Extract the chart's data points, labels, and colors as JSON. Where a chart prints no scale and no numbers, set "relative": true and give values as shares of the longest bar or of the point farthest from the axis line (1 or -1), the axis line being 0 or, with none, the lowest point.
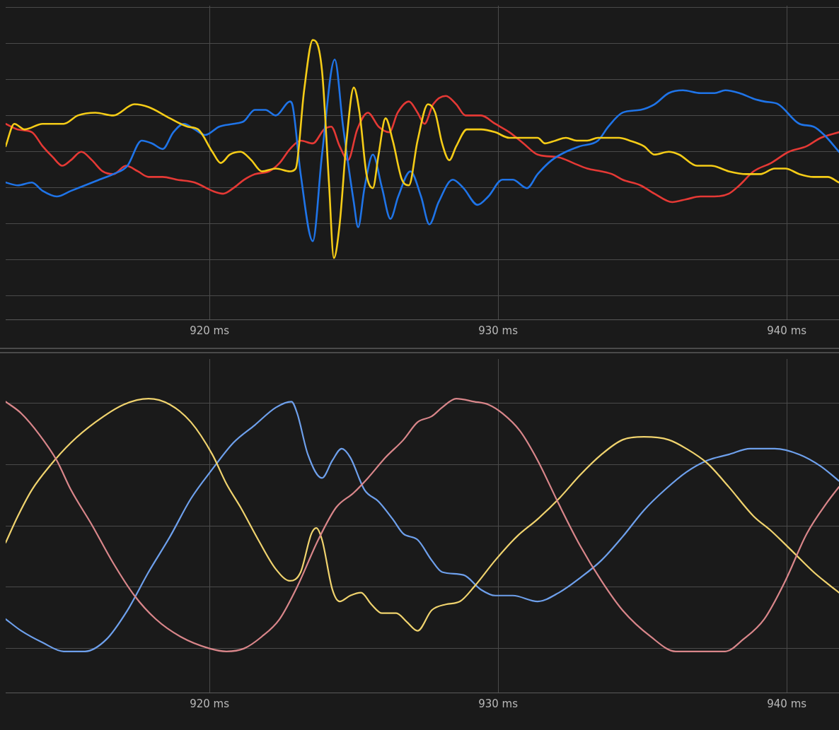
{
  "chart_data": [
    {
      "type": "line",
      "relative": true,
      "grid": true,
      "tick_labels": "x",
      "marker": "none",
      "line_style": "solid",
      "xlim": [
        912.94,
        941.81
      ],
      "xticks": [
        {
          "value": 920,
          "label": "920 ms"
        },
        {
          "value": 930,
          "label": "930 ms"
        },
        {
          "value": 940,
          "label": "940 ms"
        }
      ],
      "series": [
        {
          "color": "#f5cc17",
          "x": [
            912.94,
            913.24,
            913.6,
            914.22,
            914.95,
            915.44,
            916.05,
            916.67,
            917.4,
            917.89,
            918.63,
            919.24,
            919.61,
            920.1,
            920.39,
            920.71,
            921.08,
            921.45,
            921.81,
            922.3,
            922.79,
            922.99,
            923.28,
            923.58,
            923.9,
            924.14,
            924.31,
            924.51,
            924.75,
            925.0,
            925.2,
            925.44,
            925.66,
            925.86,
            926.1,
            926.35,
            926.67,
            926.91,
            927.21,
            927.57,
            927.82,
            928.06,
            928.31,
            928.55,
            928.92,
            929.41,
            929.9,
            930.39,
            930.88,
            931.37,
            931.62,
            931.99,
            932.35,
            932.72,
            933.09,
            933.46,
            934.19,
            934.56,
            935.05,
            935.42,
            935.91,
            936.27,
            936.89,
            937.38,
            937.99,
            938.6,
            939.09,
            939.58,
            939.95,
            940.44,
            940.93,
            941.42,
            941.81
          ],
          "values": [
            0.62,
            0.7,
            0.68,
            0.7,
            0.7,
            0.73,
            0.74,
            0.73,
            0.77,
            0.76,
            0.72,
            0.69,
            0.68,
            0.6,
            0.56,
            0.59,
            0.6,
            0.57,
            0.53,
            0.54,
            0.53,
            0.54,
            0.82,
            1,
            0.89,
            0.49,
            0.22,
            0.34,
            0.64,
            0.83,
            0.74,
            0.52,
            0.47,
            0.59,
            0.72,
            0.64,
            0.5,
            0.48,
            0.64,
            0.77,
            0.74,
            0.63,
            0.57,
            0.62,
            0.68,
            0.68,
            0.67,
            0.65,
            0.65,
            0.65,
            0.63,
            0.64,
            0.65,
            0.64,
            0.64,
            0.65,
            0.65,
            0.64,
            0.62,
            0.59,
            0.6,
            0.59,
            0.55,
            0.55,
            0.53,
            0.52,
            0.52,
            0.54,
            0.54,
            0.52,
            0.51,
            0.51,
            0.49
          ]
        },
        {
          "color": "#1f74e8",
          "x": [
            912.94,
            913.36,
            913.85,
            914.22,
            914.71,
            915.2,
            915.69,
            916.18,
            916.67,
            917.16,
            917.65,
            918.01,
            918.38,
            918.75,
            919.12,
            919.49,
            919.85,
            920.34,
            920.83,
            921.2,
            921.57,
            921.94,
            922.3,
            922.79,
            922.87,
            923.16,
            923.58,
            923.9,
            924.34,
            924.63,
            925.0,
            925.15,
            925.37,
            925.66,
            925.98,
            926.27,
            926.54,
            926.96,
            927.33,
            927.62,
            927.94,
            928.43,
            928.8,
            929.29,
            929.66,
            930.15,
            930.51,
            931.0,
            931.37,
            931.86,
            932.35,
            932.84,
            933.46,
            933.82,
            934.31,
            934.93,
            935.42,
            935.91,
            936.4,
            937.01,
            937.5,
            937.87,
            938.36,
            938.85,
            939.22,
            939.71,
            940.44,
            940.93,
            941.3,
            941.81
          ],
          "values": [
            0.49,
            0.48,
            0.49,
            0.46,
            0.44,
            0.46,
            0.48,
            0.5,
            0.52,
            0.55,
            0.64,
            0.63,
            0.61,
            0.67,
            0.7,
            0.68,
            0.66,
            0.69,
            0.7,
            0.71,
            0.75,
            0.75,
            0.73,
            0.78,
            0.77,
            0.52,
            0.28,
            0.59,
            0.93,
            0.69,
            0.42,
            0.33,
            0.47,
            0.59,
            0.47,
            0.36,
            0.44,
            0.53,
            0.44,
            0.34,
            0.42,
            0.5,
            0.47,
            0.41,
            0.44,
            0.5,
            0.5,
            0.47,
            0.52,
            0.57,
            0.6,
            0.62,
            0.64,
            0.69,
            0.74,
            0.75,
            0.77,
            0.81,
            0.82,
            0.81,
            0.81,
            0.82,
            0.81,
            0.79,
            0.78,
            0.77,
            0.7,
            0.69,
            0.66,
            0.6
          ]
        },
        {
          "color": "#e53935",
          "x": [
            912.94,
            913.36,
            913.85,
            914.22,
            914.58,
            914.9,
            915.2,
            915.56,
            915.93,
            916.3,
            916.67,
            917.11,
            917.52,
            917.89,
            918.38,
            918.87,
            919.49,
            920.1,
            920.47,
            920.83,
            921.2,
            921.57,
            922.06,
            922.43,
            922.79,
            923.16,
            923.58,
            923.97,
            924.22,
            924.51,
            924.8,
            925.12,
            925.49,
            925.86,
            926.23,
            926.52,
            926.91,
            927.21,
            927.45,
            927.75,
            928.19,
            928.55,
            928.87,
            929.41,
            929.9,
            930.39,
            930.88,
            931.37,
            932.11,
            932.6,
            933.09,
            933.58,
            933.95,
            934.31,
            934.93,
            935.42,
            936.03,
            936.52,
            937.01,
            937.5,
            937.99,
            938.36,
            938.85,
            939.46,
            940.07,
            940.69,
            941.18,
            941.81
          ],
          "values": [
            0.7,
            0.68,
            0.67,
            0.62,
            0.58,
            0.55,
            0.57,
            0.6,
            0.57,
            0.53,
            0.52,
            0.55,
            0.53,
            0.51,
            0.51,
            0.5,
            0.49,
            0.46,
            0.45,
            0.47,
            0.5,
            0.52,
            0.53,
            0.56,
            0.61,
            0.64,
            0.63,
            0.68,
            0.69,
            0.62,
            0.57,
            0.68,
            0.74,
            0.69,
            0.67,
            0.74,
            0.78,
            0.74,
            0.7,
            0.77,
            0.8,
            0.77,
            0.73,
            0.73,
            0.7,
            0.67,
            0.63,
            0.59,
            0.58,
            0.56,
            0.54,
            0.53,
            0.52,
            0.5,
            0.48,
            0.45,
            0.42,
            0.43,
            0.44,
            0.44,
            0.45,
            0.48,
            0.53,
            0.56,
            0.6,
            0.62,
            0.65,
            0.67
          ]
        }
      ]
    },
    {
      "type": "line",
      "relative": true,
      "grid": true,
      "tick_labels": "x",
      "marker": "none",
      "line_style": "solid",
      "xlim": [
        912.94,
        941.81
      ],
      "xticks": [
        {
          "value": 920,
          "label": "920 ms"
        },
        {
          "value": 930,
          "label": "930 ms"
        },
        {
          "value": 940,
          "label": "940 ms"
        }
      ],
      "series": [
        {
          "color": "#d9868a",
          "x": [
            912.94,
            913.48,
            914.09,
            914.71,
            915.2,
            915.93,
            916.67,
            917.4,
            918.14,
            919.0,
            920.0,
            920.59,
            921.2,
            921.81,
            922.43,
            923.04,
            923.77,
            924.39,
            925.0,
            925.49,
            926.1,
            926.72,
            927.21,
            927.7,
            928.06,
            928.55,
            929.17,
            929.66,
            930.15,
            930.76,
            931.37,
            932.11,
            932.84,
            933.58,
            934.31,
            935.29,
            936.15,
            937.01,
            937.87,
            938.48,
            939.22,
            939.95,
            940.69,
            941.42,
            941.81
          ],
          "values": [
            0.99,
            0.95,
            0.88,
            0.79,
            0.69,
            0.57,
            0.44,
            0.33,
            0.25,
            0.19,
            0.15,
            0.14,
            0.15,
            0.19,
            0.25,
            0.36,
            0.52,
            0.63,
            0.68,
            0.73,
            0.8,
            0.86,
            0.92,
            0.94,
            0.97,
            1,
            0.99,
            0.98,
            0.95,
            0.89,
            0.79,
            0.64,
            0.5,
            0.38,
            0.28,
            0.19,
            0.14,
            0.14,
            0.14,
            0.18,
            0.25,
            0.38,
            0.54,
            0.65,
            0.7
          ]
        },
        {
          "color": "#f0d36e",
          "x": [
            912.94,
            913.36,
            913.85,
            914.46,
            915.2,
            916.05,
            917.03,
            917.89,
            918.63,
            919.36,
            920.1,
            920.59,
            921.08,
            921.69,
            922.3,
            922.79,
            923.16,
            923.53,
            923.7,
            923.9,
            924.26,
            924.51,
            924.88,
            925.25,
            925.61,
            925.98,
            926.47,
            926.84,
            927.21,
            927.7,
            928.19,
            928.68,
            929.17,
            929.9,
            930.64,
            931.37,
            932.11,
            932.84,
            933.58,
            934.31,
            935.05,
            935.91,
            936.52,
            937.25,
            937.99,
            938.85,
            939.46,
            940.2,
            940.93,
            941.42,
            941.81
          ],
          "values": [
            0.51,
            0.6,
            0.69,
            0.77,
            0.85,
            0.92,
            0.98,
            1,
            0.98,
            0.92,
            0.81,
            0.71,
            0.63,
            0.52,
            0.42,
            0.38,
            0.41,
            0.54,
            0.56,
            0.52,
            0.35,
            0.31,
            0.33,
            0.34,
            0.3,
            0.27,
            0.27,
            0.24,
            0.21,
            0.28,
            0.3,
            0.31,
            0.36,
            0.45,
            0.53,
            0.59,
            0.66,
            0.74,
            0.81,
            0.86,
            0.87,
            0.86,
            0.83,
            0.78,
            0.7,
            0.6,
            0.55,
            0.48,
            0.41,
            0.37,
            0.34
          ]
        },
        {
          "color": "#6ea0ec",
          "x": [
            912.94,
            913.48,
            914.22,
            914.95,
            915.69,
            916.42,
            917.16,
            917.89,
            918.63,
            919.36,
            920.1,
            920.83,
            921.57,
            922.3,
            922.84,
            923.04,
            923.41,
            923.9,
            924.26,
            924.58,
            924.88,
            925.37,
            925.86,
            926.35,
            926.72,
            927.21,
            927.7,
            928.06,
            928.8,
            929.41,
            929.9,
            930.51,
            931.37,
            932.11,
            932.84,
            933.58,
            934.31,
            935.05,
            935.78,
            936.52,
            937.25,
            937.99,
            938.73,
            939.58,
            940.44,
            941.18,
            941.81
          ],
          "values": [
            0.25,
            0.21,
            0.17,
            0.14,
            0.14,
            0.18,
            0.28,
            0.41,
            0.53,
            0.66,
            0.76,
            0.85,
            0.91,
            0.97,
            0.99,
            0.95,
            0.81,
            0.73,
            0.79,
            0.83,
            0.8,
            0.69,
            0.65,
            0.59,
            0.54,
            0.52,
            0.45,
            0.41,
            0.4,
            0.35,
            0.33,
            0.33,
            0.31,
            0.34,
            0.39,
            0.45,
            0.53,
            0.62,
            0.69,
            0.75,
            0.79,
            0.81,
            0.83,
            0.83,
            0.81,
            0.77,
            0.72
          ]
        }
      ]
    }
  ]
}
